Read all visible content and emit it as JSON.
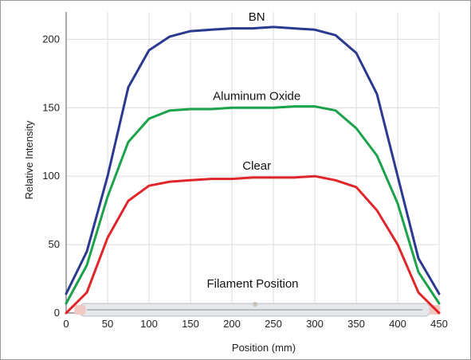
{
  "chart_data": {
    "type": "line",
    "title": "",
    "xlabel": "Position (mm)",
    "ylabel": "Relative Intensity",
    "xlim": [
      0,
      450
    ],
    "ylim": [
      0,
      220
    ],
    "x_ticks": [
      0,
      50,
      100,
      150,
      200,
      250,
      300,
      350,
      400,
      450
    ],
    "y_ticks": [
      0,
      50,
      100,
      150,
      200
    ],
    "grid": true,
    "annotation": "Filament Position",
    "x": [
      0,
      25,
      50,
      75,
      100,
      125,
      150,
      175,
      200,
      225,
      250,
      275,
      300,
      325,
      350,
      375,
      400,
      425,
      450
    ],
    "series": [
      {
        "name": "BN",
        "color": "#2b3990",
        "values": [
          14,
          45,
          100,
          165,
          192,
          202,
          206,
          207,
          208,
          208,
          209,
          208,
          207,
          203,
          190,
          160,
          100,
          40,
          14
        ]
      },
      {
        "name": "Aluminum Oxide",
        "color": "#1aa34a",
        "values": [
          7,
          35,
          85,
          125,
          142,
          148,
          149,
          149,
          150,
          150,
          150,
          151,
          151,
          148,
          135,
          115,
          80,
          30,
          7
        ]
      },
      {
        "name": "Clear",
        "color": "#e0262b",
        "values": [
          0,
          15,
          55,
          82,
          93,
          96,
          97,
          98,
          98,
          99,
          99,
          99,
          100,
          97,
          92,
          75,
          50,
          15,
          0
        ]
      }
    ]
  }
}
